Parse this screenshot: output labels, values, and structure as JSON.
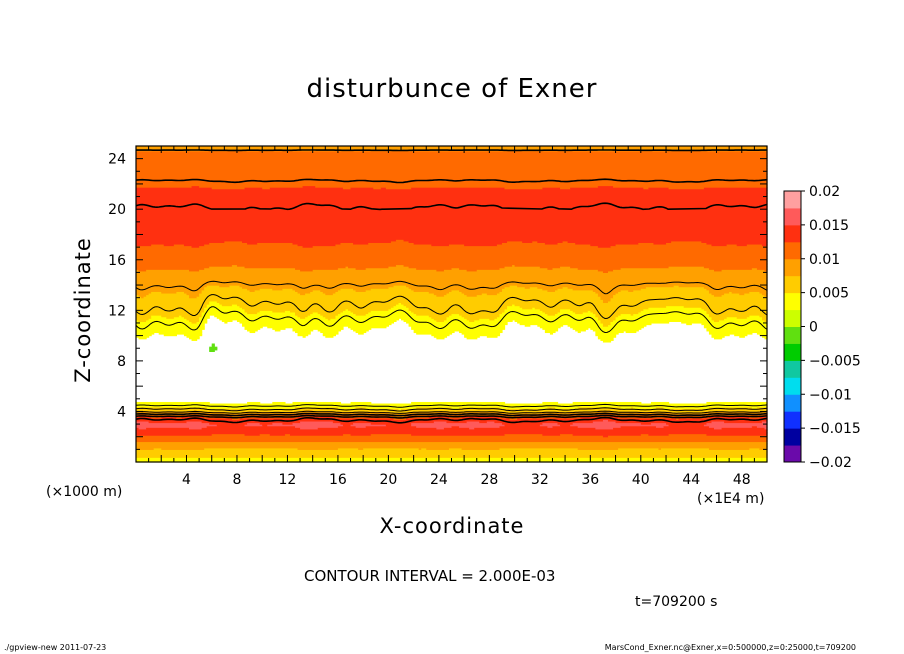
{
  "chart_data": {
    "type": "heatmap",
    "title": "disturbunce of Exner",
    "xlabel": "X-coordinate",
    "ylabel": "Z-coordinate",
    "x_unit_label": "(×1000 m)",
    "x_scale_label": "(×1E4 m)",
    "xlim": [
      0,
      50
    ],
    "ylim": [
      0,
      25
    ],
    "x_ticks": [
      "4",
      "8",
      "12",
      "16",
      "20",
      "24",
      "28",
      "32",
      "36",
      "40",
      "44",
      "48"
    ],
    "y_ticks": [
      "4",
      "8",
      "12",
      "16",
      "20",
      "24"
    ],
    "colorbar": {
      "labels": [
        "0.02",
        "0.015",
        "0.01",
        "0.005",
        "0",
        "−0.005",
        "−0.01",
        "−0.015",
        "−0.02"
      ],
      "range": [
        -0.02,
        0.02
      ],
      "step": 0.0025
    },
    "contour_interval": "CONTOUR INTERVAL = 2.000E-03",
    "time_label": "t=709200 s",
    "profile": {
      "z": [
        0,
        0.5,
        1,
        1.5,
        2,
        2.5,
        3,
        3.5,
        4,
        4.5,
        5,
        6,
        7,
        8,
        9,
        10,
        11,
        12,
        13,
        14,
        15,
        16,
        17,
        18,
        19,
        20,
        21,
        22,
        23,
        24,
        25
      ],
      "value": [
        0.0038,
        0.0055,
        0.0072,
        0.0095,
        0.0118,
        0.014,
        0.0155,
        0.013,
        0.0072,
        0.0036,
        0.001,
        0.0005,
        0.0004,
        0.0004,
        0.0006,
        0.002,
        0.0036,
        0.0055,
        0.0068,
        0.008,
        0.0096,
        0.0108,
        0.0121,
        0.0135,
        0.014,
        0.0141,
        0.0133,
        0.0122,
        0.0114,
        0.0104,
        0.0098
      ]
    },
    "contour_levels": [
      0.004,
      0.006,
      0.008,
      0.01,
      0.012,
      0.014
    ]
  },
  "footer": {
    "left": "./gpview-new   2011-07-23",
    "right": "MarsCond_Exner.nc@Exner,x=0:500000,z=0:25000,t=709200"
  },
  "colors": {
    "palette": [
      "#6a0aaa",
      "#0000a0",
      "#1030ff",
      "#1090ff",
      "#00ddee",
      "#10c8a0",
      "#00cc00",
      "#60e010",
      "#ccff00",
      "#ffff00",
      "#ffcc00",
      "#ffa000",
      "#ff6a00",
      "#ff3010",
      "#ff5a5a",
      "#ffa0a0"
    ]
  }
}
